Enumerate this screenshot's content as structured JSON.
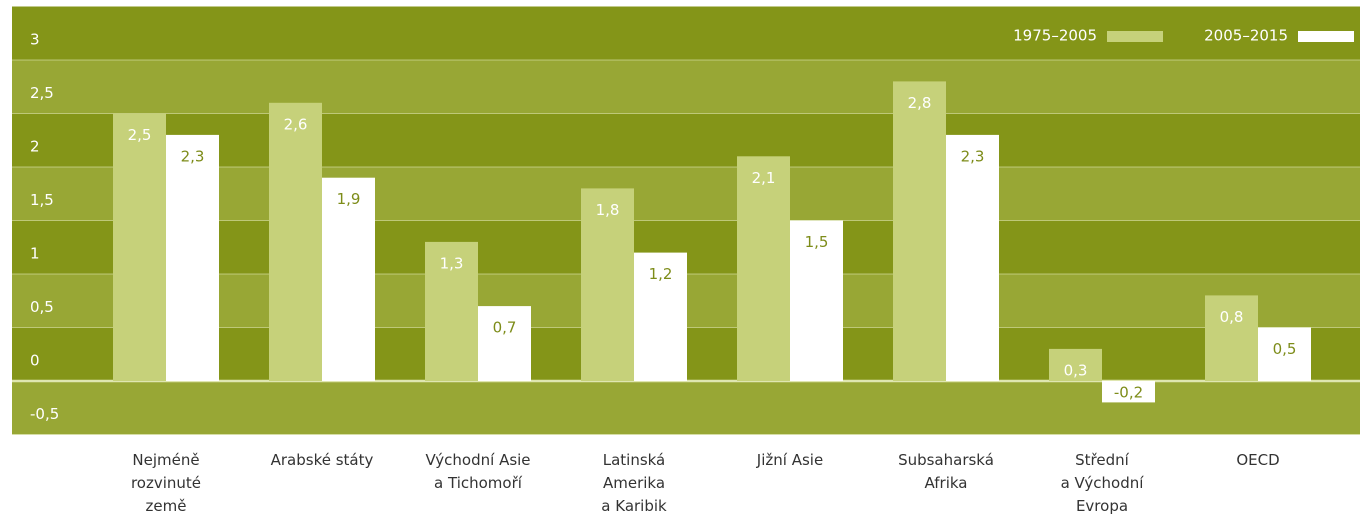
{
  "chart_data": {
    "type": "bar",
    "categories": [
      [
        "Nejméně",
        "rozvinuté",
        "země"
      ],
      [
        "Arabské státy"
      ],
      [
        "Východní Asie",
        "a Tichomoří"
      ],
      [
        "Latinská",
        "Amerika",
        "a Karibik"
      ],
      [
        "Jižní Asie"
      ],
      [
        "Subsaharská",
        "Afrika"
      ],
      [
        "Střední",
        "a Východní",
        "Evropa"
      ],
      [
        "OECD"
      ]
    ],
    "series": [
      {
        "name": "1975–2005",
        "color": "#c6d17a",
        "label_color": "#ffffff",
        "values": [
          2.5,
          2.6,
          1.3,
          1.8,
          2.1,
          2.8,
          0.3,
          0.8
        ],
        "value_labels": [
          "2,5",
          "2,6",
          "1,3",
          "1,8",
          "2,1",
          "2,8",
          "0,3",
          "0,8"
        ]
      },
      {
        "name": "2005–2015",
        "color": "#ffffff",
        "label_color": "#7d8c19",
        "values": [
          2.3,
          1.9,
          0.7,
          1.2,
          1.5,
          2.3,
          -0.2,
          0.5
        ],
        "value_labels": [
          "2,3",
          "1,9",
          "0,7",
          "1,2",
          "1,5",
          "2,3",
          "-0,2",
          "0,5"
        ]
      }
    ],
    "ylim": [
      -0.5,
      3.5
    ],
    "yticks": [
      {
        "value": -0.5,
        "label": "-0,5"
      },
      0,
      {
        "value": 0.5,
        "label": "0,5"
      },
      1,
      {
        "value": 1.5,
        "label": "1,5"
      },
      2,
      {
        "value": 2.5,
        "label": "2,5"
      },
      3
    ],
    "grid": true,
    "legend": "top-right",
    "band_colors": [
      "#849518",
      "#98a735"
    ]
  }
}
